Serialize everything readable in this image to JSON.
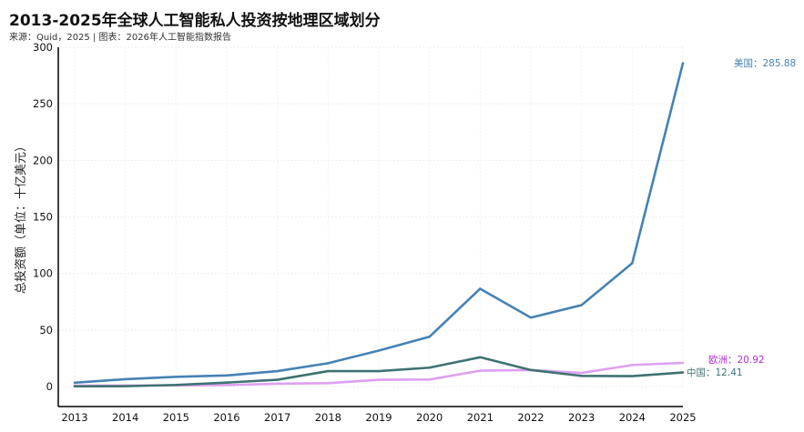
{
  "title": "2013-2025年全球人工智能私人投资按地理区域划分",
  "subtitle": "来源：Quid，2025 | 图表：2026年人工智能指数报告",
  "chart_data": {
    "type": "line",
    "title": "2013-2025年全球人工智能私人投资按地理区域划分",
    "ylabel": "总投资额（单位：十亿美元）",
    "xlabel": "",
    "x": [
      2013,
      2014,
      2015,
      2016,
      2017,
      2018,
      2019,
      2020,
      2021,
      2022,
      2023,
      2024,
      2025
    ],
    "ylim": [
      0,
      300
    ],
    "yticks": [
      0,
      50,
      100,
      150,
      200,
      250,
      300
    ],
    "grid": true,
    "series": [
      {
        "name": "美国",
        "end_label": "美国：285.88",
        "color": "#4682b4",
        "values": [
          3.4,
          6.5,
          8.6,
          9.8,
          13.6,
          20.6,
          31.8,
          44.0,
          86.5,
          60.9,
          72.0,
          109.1,
          285.88
        ]
      },
      {
        "name": "欧洲",
        "end_label": "欧洲：20.92",
        "color": "#dda0f0",
        "values": [
          0.8,
          0.9,
          1.0,
          1.3,
          2.5,
          3.0,
          6.0,
          6.2,
          14.0,
          14.6,
          12.0,
          19.0,
          20.92
        ]
      },
      {
        "name": "中国",
        "end_label": "中国：12.41",
        "color": "#3f7272",
        "values": [
          0.2,
          0.3,
          1.4,
          3.5,
          6.0,
          13.6,
          13.6,
          16.7,
          25.9,
          14.6,
          9.4,
          9.2,
          12.41
        ]
      }
    ],
    "end_label_colors": [
      "#4682b4",
      "#b030d0",
      "#3f7272"
    ]
  }
}
